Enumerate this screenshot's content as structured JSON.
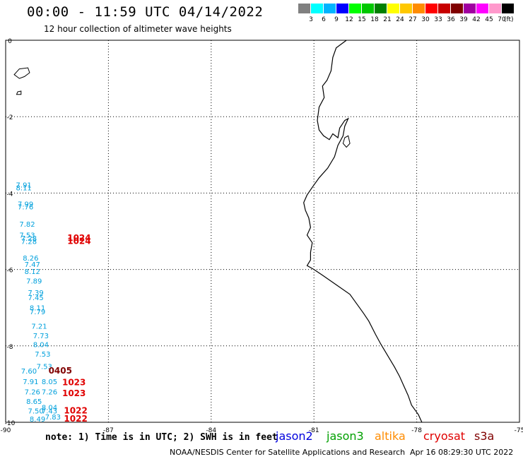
{
  "header": {
    "title": "00:00 - 11:59 UTC 04/14/2022",
    "subtitle": "12 hour collection of altimeter wave heights"
  },
  "legend": {
    "colors": [
      "#808080",
      "#00ffff",
      "#00b4ff",
      "#0000ff",
      "#00ff00",
      "#00c800",
      "#008000",
      "#ffff00",
      "#ffc800",
      "#ff8c00",
      "#ff0000",
      "#c80000",
      "#800000",
      "#a000a0",
      "#ff00ff",
      "#ff99cc",
      "#000000"
    ],
    "ticks": [
      "3",
      "6",
      "9",
      "12",
      "15",
      "18",
      "21",
      "24",
      "27",
      "30",
      "33",
      "36",
      "39",
      "42",
      "45",
      "70"
    ],
    "unit": "(ft)"
  },
  "map": {
    "lon_range": [
      -90,
      -75
    ],
    "lat_range": [
      -10,
      0
    ],
    "x_ticks": [
      "-90",
      "-87",
      "-84",
      "-81",
      "-78",
      "-75"
    ],
    "x_tick_values": [
      -90,
      -87,
      -84,
      -81,
      -78,
      -75
    ],
    "y_ticks": [
      "0",
      "-2",
      "-4",
      "-6",
      "-8",
      "-10"
    ],
    "y_tick_values": [
      0,
      -2,
      -4,
      -6,
      -8,
      -10
    ],
    "grid": "dotted",
    "coast_color": "#000000",
    "wave_color": "#00a0dc",
    "time_color": "#e00000",
    "time_color_dark": "#800000",
    "wave_heights": [
      {
        "v": "7.91",
        "lon": -89.7,
        "lat": -3.85
      },
      {
        "v": "8.11",
        "lon": -89.7,
        "lat": -3.93
      },
      {
        "v": "7.99",
        "lon": -89.65,
        "lat": -4.35
      },
      {
        "v": "7.76",
        "lon": -89.65,
        "lat": -4.43
      },
      {
        "v": "7.82",
        "lon": -89.6,
        "lat": -4.88
      },
      {
        "v": "7.53",
        "lon": -89.6,
        "lat": -5.17
      },
      {
        "v": "7.28",
        "lon": -89.55,
        "lat": -5.25
      },
      {
        "v": "7.28",
        "lon": -89.55,
        "lat": -5.33
      },
      {
        "v": "8.26",
        "lon": -89.5,
        "lat": -5.77
      },
      {
        "v": "7.47",
        "lon": -89.45,
        "lat": -5.93
      },
      {
        "v": "8.12",
        "lon": -89.45,
        "lat": -6.12
      },
      {
        "v": "7.89",
        "lon": -89.4,
        "lat": -6.37
      },
      {
        "v": "7.39",
        "lon": -89.35,
        "lat": -6.67
      },
      {
        "v": "7.45",
        "lon": -89.35,
        "lat": -6.8
      },
      {
        "v": "8.11",
        "lon": -89.3,
        "lat": -7.07
      },
      {
        "v": "7.79",
        "lon": -89.3,
        "lat": -7.17
      },
      {
        "v": "7.21",
        "lon": -89.25,
        "lat": -7.55
      },
      {
        "v": "7.73",
        "lon": -89.2,
        "lat": -7.8
      },
      {
        "v": "8.04",
        "lon": -89.2,
        "lat": -8.03
      },
      {
        "v": "7.53",
        "lon": -89.15,
        "lat": -8.28
      },
      {
        "v": "7.53",
        "lon": -89.1,
        "lat": -8.6
      },
      {
        "v": "7.60",
        "lon": -89.55,
        "lat": -8.72
      },
      {
        "v": "7.91",
        "lon": -89.5,
        "lat": -9.0
      },
      {
        "v": "8.05",
        "lon": -88.95,
        "lat": -9.0
      },
      {
        "v": "7.26",
        "lon": -89.45,
        "lat": -9.27
      },
      {
        "v": "7.26",
        "lon": -88.95,
        "lat": -9.27
      },
      {
        "v": "8.65",
        "lon": -89.4,
        "lat": -9.52
      },
      {
        "v": "8.04",
        "lon": -88.95,
        "lat": -9.68
      },
      {
        "v": "7.50",
        "lon": -89.35,
        "lat": -9.77
      },
      {
        "v": "7.43",
        "lon": -88.95,
        "lat": -9.77
      },
      {
        "v": "8.49",
        "lon": -89.3,
        "lat": -9.98
      },
      {
        "v": "7.83",
        "lon": -88.85,
        "lat": -9.93
      }
    ],
    "time_labels": [
      {
        "v": "1024",
        "lon": -88.2,
        "lat": -5.25,
        "dark": false
      },
      {
        "v": "1024",
        "lon": -88.2,
        "lat": -5.33,
        "dark": false
      },
      {
        "v": "0405",
        "lon": -88.75,
        "lat": -8.72,
        "dark": true
      },
      {
        "v": "1023",
        "lon": -88.35,
        "lat": -9.03,
        "dark": false
      },
      {
        "v": "1023",
        "lon": -88.35,
        "lat": -9.32,
        "dark": false
      },
      {
        "v": "1022",
        "lon": -88.3,
        "lat": -9.77,
        "dark": false
      },
      {
        "v": "1022",
        "lon": -88.3,
        "lat": -9.98,
        "dark": false
      }
    ],
    "coastline": [
      [
        -80.05,
        0
      ],
      [
        -80.35,
        -0.2
      ],
      [
        -80.45,
        -0.45
      ],
      [
        -80.5,
        -0.8
      ],
      [
        -80.62,
        -1.05
      ],
      [
        -80.75,
        -1.2
      ],
      [
        -80.7,
        -1.5
      ],
      [
        -80.85,
        -1.75
      ],
      [
        -80.9,
        -2.1
      ],
      [
        -80.85,
        -2.35
      ],
      [
        -80.72,
        -2.5
      ],
      [
        -80.55,
        -2.6
      ],
      [
        -80.45,
        -2.45
      ],
      [
        -80.3,
        -2.55
      ],
      [
        -80.25,
        -2.3
      ],
      [
        -80.1,
        -2.1
      ],
      [
        -80.0,
        -2.05
      ],
      [
        -80.1,
        -2.25
      ],
      [
        -80.15,
        -2.5
      ],
      [
        -80.3,
        -2.75
      ],
      [
        -80.4,
        -3.05
      ],
      [
        -80.6,
        -3.35
      ],
      [
        -80.85,
        -3.6
      ],
      [
        -81.05,
        -3.85
      ],
      [
        -81.2,
        -4.05
      ],
      [
        -81.3,
        -4.25
      ],
      [
        -81.25,
        -4.45
      ],
      [
        -81.15,
        -4.65
      ],
      [
        -81.1,
        -4.9
      ],
      [
        -81.2,
        -5.1
      ],
      [
        -81.05,
        -5.3
      ],
      [
        -81.1,
        -5.55
      ],
      [
        -81.1,
        -5.75
      ],
      [
        -81.2,
        -5.9
      ],
      [
        -81.0,
        -6.0
      ],
      [
        -80.75,
        -6.15
      ],
      [
        -80.35,
        -6.4
      ],
      [
        -79.95,
        -6.65
      ],
      [
        -79.75,
        -6.9
      ],
      [
        -79.55,
        -7.15
      ],
      [
        -79.4,
        -7.35
      ],
      [
        -79.2,
        -7.7
      ],
      [
        -79.05,
        -7.95
      ],
      [
        -78.85,
        -8.25
      ],
      [
        -78.65,
        -8.55
      ],
      [
        -78.5,
        -8.8
      ],
      [
        -78.4,
        -9.0
      ],
      [
        -78.25,
        -9.3
      ],
      [
        -78.15,
        -9.55
      ],
      [
        -77.95,
        -9.8
      ],
      [
        -77.85,
        -10.0
      ]
    ],
    "islands": [
      [
        [
          -89.6,
          -0.75
        ],
        [
          -89.35,
          -0.72
        ],
        [
          -89.3,
          -0.85
        ],
        [
          -89.45,
          -0.95
        ],
        [
          -89.6,
          -1.0
        ],
        [
          -89.75,
          -0.9
        ],
        [
          -89.6,
          -0.75
        ]
      ],
      [
        [
          -89.65,
          -1.35
        ],
        [
          -89.55,
          -1.33
        ],
        [
          -89.55,
          -1.42
        ],
        [
          -89.68,
          -1.42
        ],
        [
          -89.65,
          -1.35
        ]
      ]
    ],
    "gulf_islands": [
      [
        [
          -80.1,
          -2.55
        ],
        [
          -80.0,
          -2.5
        ],
        [
          -79.95,
          -2.7
        ],
        [
          -80.05,
          -2.8
        ],
        [
          -80.15,
          -2.7
        ],
        [
          -80.1,
          -2.55
        ]
      ]
    ]
  },
  "footer": {
    "note": "note: 1) Time is in UTC; 2) SWH is in feet",
    "satellites": [
      {
        "name": "jason2",
        "color": "#0000dd"
      },
      {
        "name": "jason3",
        "color": "#00a000"
      },
      {
        "name": "altika",
        "color": "#ff8c00"
      },
      {
        "name": "cryosat",
        "color": "#e00000"
      },
      {
        "name": "s3a",
        "color": "#800000"
      }
    ],
    "credit": "NOAA/NESDIS Center for Satellite Applications and Research",
    "generated": "Apr 16 08:29:30 UTC 2022"
  }
}
